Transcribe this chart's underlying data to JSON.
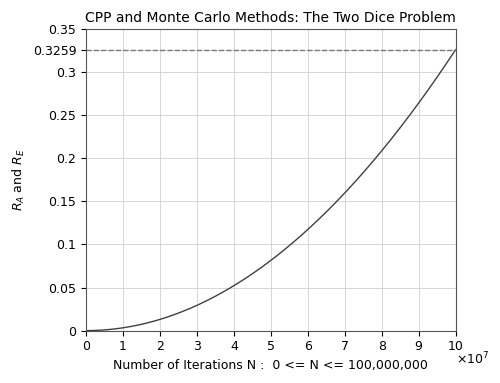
{
  "title": "CPP and Monte Carlo Methods: The Two Dice Problem",
  "xlabel": "Number of Iterations N :  0 <= N <= 100,000,000",
  "ylabel": "$R_A$ and $R_E$",
  "xlim": [
    0,
    100000000.0
  ],
  "ylim": [
    0,
    0.35
  ],
  "xticks": [
    0,
    10000000.0,
    20000000.0,
    30000000.0,
    40000000.0,
    50000000.0,
    60000000.0,
    70000000.0,
    80000000.0,
    90000000.0,
    100000000.0
  ],
  "xtick_labels": [
    "0",
    "1",
    "2",
    "3",
    "4",
    "5",
    "6",
    "7",
    "8",
    "9",
    "10"
  ],
  "yticks": [
    0,
    0.05,
    0.1,
    0.15,
    0.2,
    0.25,
    0.3,
    0.35
  ],
  "ytick_labels": [
    "0",
    "0.05",
    "0.1",
    "0.15",
    "0.2",
    "0.25",
    "0.3",
    "0.35"
  ],
  "hline_value": 0.3259,
  "curve_color": "#404040",
  "hline_color": "#777777",
  "curve_power": 2.0,
  "background_color": "#ffffff",
  "grid_color": "#d0d0d0",
  "title_fontsize": 10,
  "label_fontsize": 9,
  "tick_fontsize": 9
}
